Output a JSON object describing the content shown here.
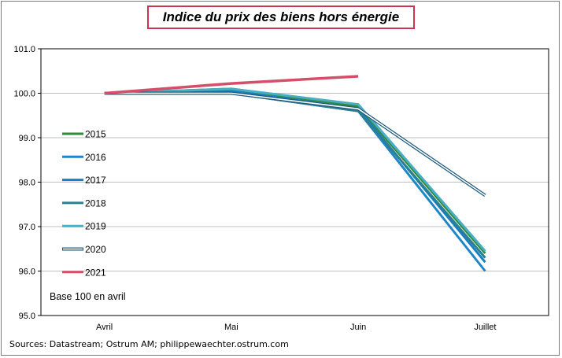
{
  "chart_data": {
    "type": "line",
    "title": "Indice du prix des biens hors énergie",
    "categories": [
      "Avril",
      "Mai",
      "Juin",
      "Juillet"
    ],
    "ylim": [
      95.0,
      101.0
    ],
    "yticks": [
      "95.0",
      "96.0",
      "97.0",
      "98.0",
      "99.0",
      "100.0",
      "101.0"
    ],
    "grid": true,
    "legend_position": "left",
    "annotation": "Base 100 en avril",
    "series": [
      {
        "name": "2015",
        "color": "#2e8b3a",
        "style": "solid",
        "values": [
          100.0,
          100.1,
          99.7,
          96.4
        ]
      },
      {
        "name": "2016",
        "color": "#1f86c7",
        "style": "solid",
        "values": [
          100.0,
          100.0,
          99.6,
          96.0
        ]
      },
      {
        "name": "2017",
        "color": "#1a7fc0",
        "style": "solid",
        "values": [
          100.0,
          100.05,
          99.65,
          96.2
        ]
      },
      {
        "name": "2018",
        "color": "#2a7f93",
        "style": "solid",
        "values": [
          100.0,
          100.0,
          99.6,
          96.3
        ]
      },
      {
        "name": "2019",
        "color": "#4aaec2",
        "style": "solid",
        "values": [
          100.0,
          100.1,
          99.75,
          96.45
        ]
      },
      {
        "name": "2020",
        "color": "#1e5a7a",
        "style": "hollow",
        "values": [
          100.0,
          100.0,
          99.65,
          97.7
        ]
      },
      {
        "name": "2021",
        "color": "#d4506a",
        "style": "solid",
        "values": [
          100.0,
          100.22,
          100.38,
          null
        ]
      }
    ],
    "source": "Sources: Datastream; Ostrum AM; philippewaechter.ostrum.com"
  }
}
